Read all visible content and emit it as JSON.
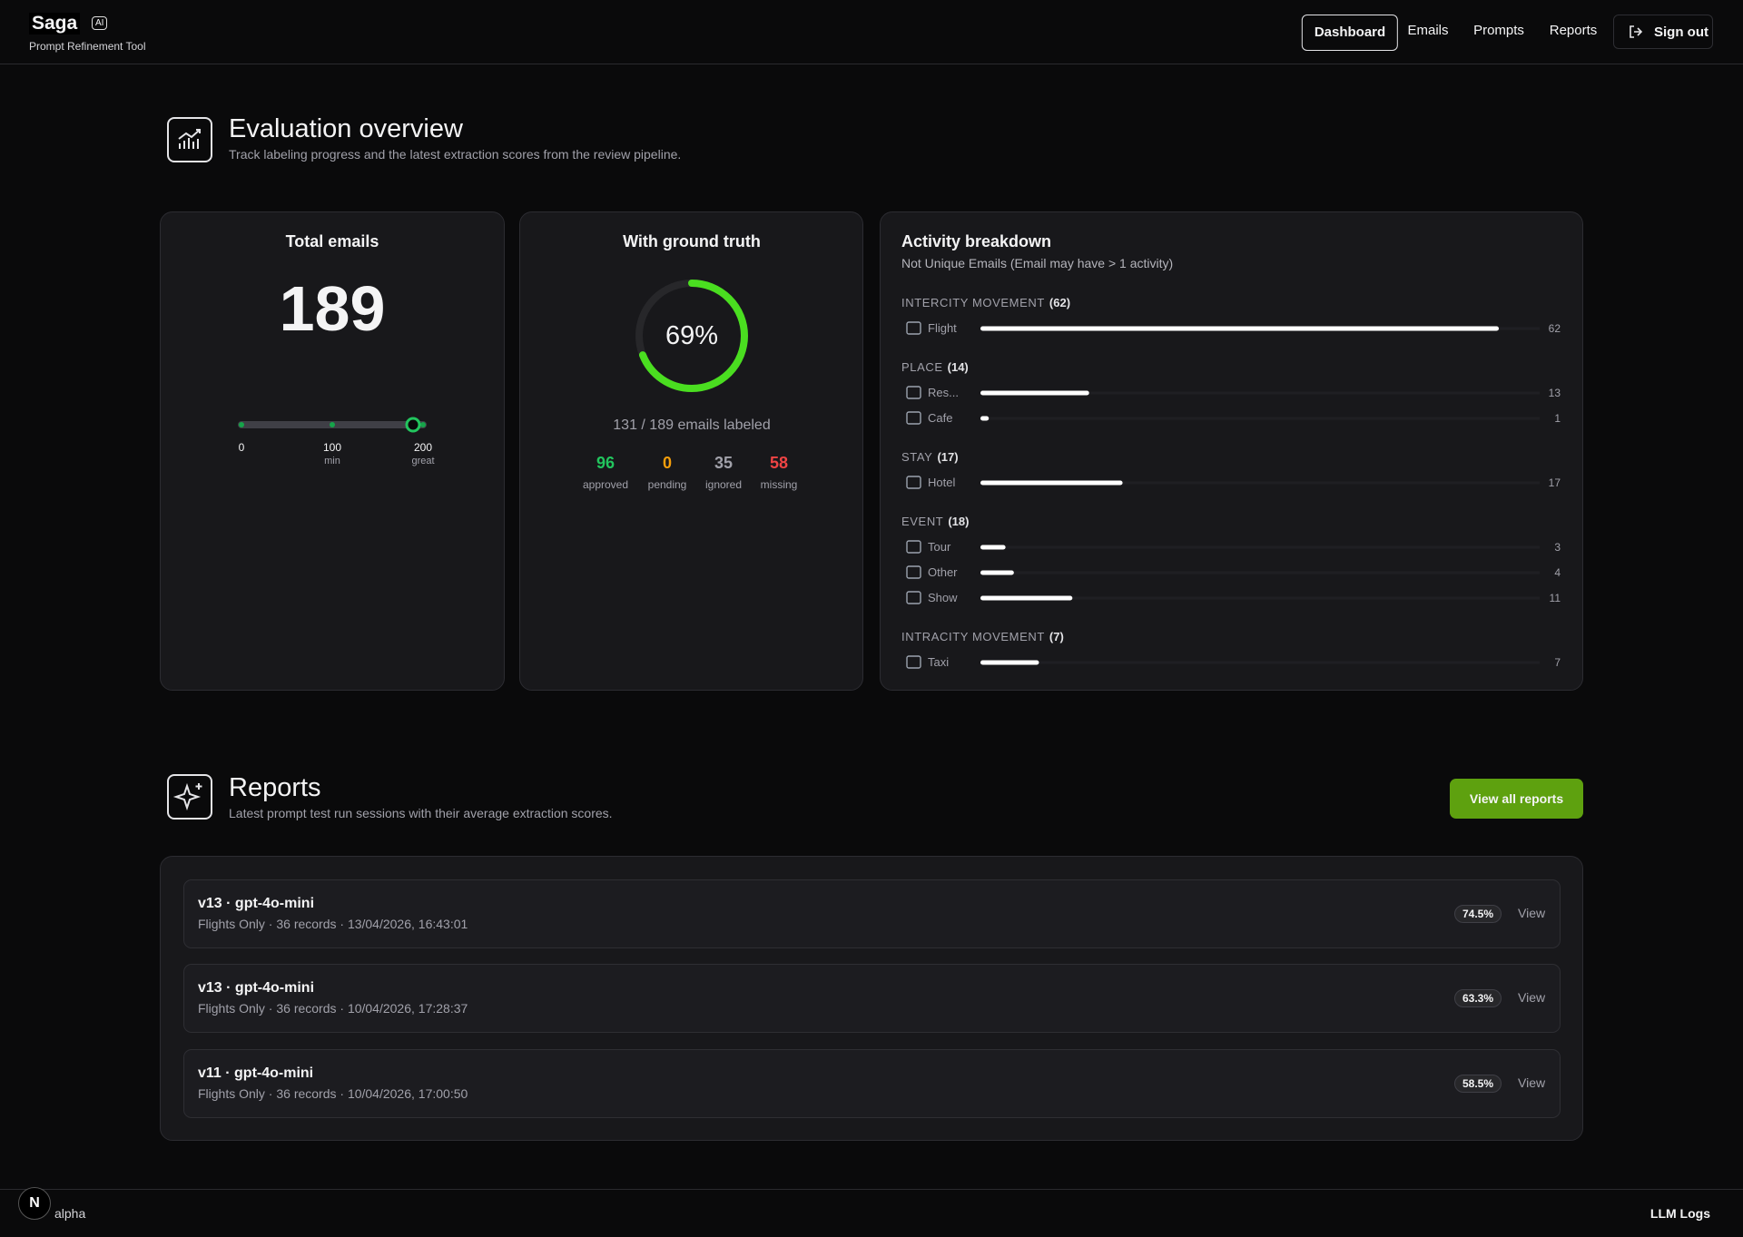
{
  "header": {
    "logo": "Saga",
    "badge": "AI",
    "subtitle": "Prompt Refinement Tool",
    "nav": [
      "Dashboard",
      "Emails",
      "Prompts",
      "Reports"
    ],
    "sign_out": "Sign out"
  },
  "overview": {
    "title": "Evaluation overview",
    "subtitle": "Track labeling progress and the latest extraction scores from the review pipeline.",
    "total": {
      "title": "Total emails",
      "value": 189,
      "ticks": [
        {
          "value": 0
        },
        {
          "value": 100,
          "note": "min"
        },
        {
          "value": 200,
          "note": "great"
        }
      ]
    },
    "ground_truth": {
      "title": "With ground truth",
      "progress": {
        "value": 69,
        "label": "69%"
      },
      "caption": "131 / 189 emails labeled",
      "stats": [
        {
          "value": 96,
          "label": "approved",
          "color": "#22c55e"
        },
        {
          "value": 0,
          "label": "pending",
          "color": "#f59e0b"
        },
        {
          "value": 35,
          "label": "ignored",
          "color": "#a1a1aa"
        },
        {
          "value": 58,
          "label": "missing",
          "color": "#ef4444"
        }
      ]
    },
    "activity": {
      "title": "Activity breakdown",
      "subtitle": "Not Unique Emails (Email may have > 1 activity)",
      "groups": [
        {
          "name": "INTERCITY MOVEMENT",
          "count": "(62)",
          "items": [
            {
              "label": "Flight",
              "value": 62
            }
          ]
        },
        {
          "name": "PLACE",
          "count": "(14)",
          "items": [
            {
              "label": "Res...",
              "value": 13
            },
            {
              "label": "Cafe",
              "value": 1
            }
          ]
        },
        {
          "name": "STAY",
          "count": "(17)",
          "items": [
            {
              "label": "Hotel",
              "value": 17
            }
          ]
        },
        {
          "name": "EVENT",
          "count": "(18)",
          "items": [
            {
              "label": "Tour",
              "value": 3
            },
            {
              "label": "Other",
              "value": 4
            },
            {
              "label": "Show",
              "value": 11
            }
          ]
        },
        {
          "name": "INTRACITY MOVEMENT",
          "count": "(7)",
          "items": [
            {
              "label": "Taxi",
              "value": 7
            }
          ]
        }
      ]
    }
  },
  "reports": {
    "title": "Reports",
    "subtitle": "Latest prompt test run sessions with their average extraction scores.",
    "button": "View all reports",
    "rows": [
      {
        "title": "v13 · gpt-4o-mini",
        "meta": "Flights Only · 36 records · 13/04/2026, 16:43:01",
        "score": "74.5%",
        "action": "View"
      },
      {
        "title": "v13 · gpt-4o-mini",
        "meta": "Flights Only · 36 records · 10/04/2026, 17:28:37",
        "score": "63.3%",
        "action": "View"
      },
      {
        "title": "v11 · gpt-4o-mini",
        "meta": "Flights Only · 36 records · 10/04/2026, 17:00:50",
        "score": "58.5%",
        "action": "View"
      }
    ]
  },
  "footer": {
    "left": "alpha",
    "right": "LLM Logs"
  }
}
